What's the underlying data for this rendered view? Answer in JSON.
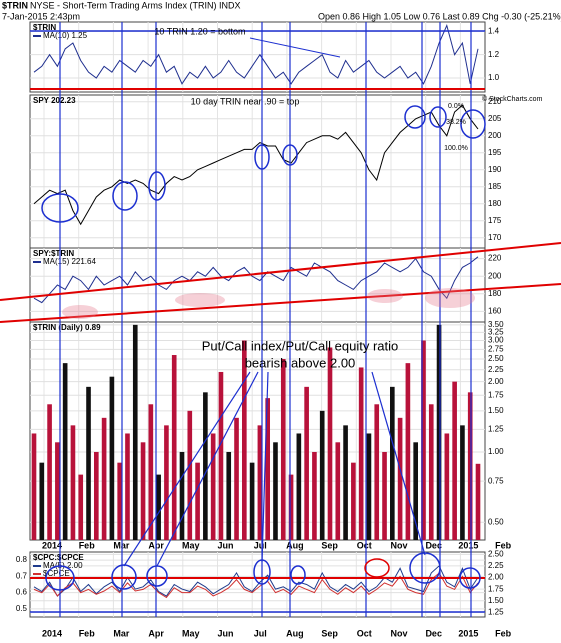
{
  "header": {
    "symbol": "$TRIN",
    "description": "NYSE - Short-Term Trading Arms Index (TRIN) INDX",
    "date": "7-Jan-2015 2:43pm",
    "quote": "Open 0.86 High 1.05 Low 0.76 Last 0.89 Chg -0.30 (-25.21%)",
    "credit": "© StockCharts.com"
  },
  "months": [
    "2014",
    "Feb",
    "Mar",
    "Apr",
    "May",
    "Jun",
    "Jul",
    "Aug",
    "Sep",
    "Oct",
    "Nov",
    "Dec",
    "2015",
    "Feb"
  ],
  "chart_data": [
    {
      "type": "line",
      "title": "$TRIN",
      "series": [
        {
          "name": "MA(10) 1.25",
          "color": "#1f2f8f",
          "values": [
            1.05,
            1.1,
            1.2,
            1.1,
            1.25,
            1.3,
            1.15,
            1.05,
            1.0,
            1.1,
            1.05,
            1.15,
            1.1,
            1.05,
            1.15,
            1.1,
            1.2,
            1.05,
            1.1,
            0.95,
            1.05,
            1.0,
            1.1,
            1.0,
            1.05,
            1.15,
            1.05,
            1.0,
            1.1,
            1.2,
            1.1,
            1.0,
            1.05,
            0.95,
            1.05,
            1.1,
            1.15,
            1.2,
            1.05,
            1.0,
            1.15,
            1.05,
            1.1,
            1.15,
            1.05,
            1.0,
            1.05,
            1.1,
            1.0,
            1.05,
            0.95,
            1.1,
            1.3,
            1.45,
            1.2,
            1.3,
            0.95,
            1.25
          ]
        }
      ],
      "ylim": [
        0.88,
        1.48
      ],
      "yticks": [
        {
          "value": 1,
          "label": "1.0"
        },
        1.2,
        1.4
      ],
      "annotations": [
        "10 TRIN 1.20 = bottom",
        "10 day TRIN near .90 = top"
      ]
    },
    {
      "type": "line",
      "title": "SPY 202.23",
      "series": [
        {
          "color": "#000000",
          "values": [
            180,
            182,
            184,
            183,
            184,
            178,
            174,
            178,
            182,
            184,
            185,
            187,
            186,
            187,
            186,
            184,
            183,
            186,
            188,
            187,
            188,
            190,
            191,
            192,
            193,
            194,
            195,
            196,
            196,
            198,
            197,
            197,
            193,
            192,
            195,
            198,
            199,
            200,
            200,
            199,
            201,
            198,
            195,
            190,
            187,
            195,
            198,
            201,
            203,
            205,
            206,
            207,
            203,
            200,
            207,
            209,
            205,
            202
          ]
        }
      ],
      "ylim": [
        167,
        212
      ],
      "yticks": [
        170,
        175,
        180,
        185,
        190,
        195,
        200,
        205,
        210
      ],
      "annotations": [
        "0.0%",
        "38.2%",
        "100.0%"
      ]
    },
    {
      "type": "line",
      "title": "SPY:$TRIN",
      "series": [
        {
          "name": "MA(15) 221.64",
          "color": "#1f2f8f",
          "values": [
            175,
            170,
            180,
            190,
            185,
            200,
            195,
            185,
            200,
            190,
            195,
            200,
            190,
            205,
            195,
            200,
            190,
            185,
            195,
            200,
            195,
            205,
            200,
            210,
            200,
            195,
            205,
            210,
            200,
            195,
            205,
            200,
            195,
            210,
            205,
            200,
            215,
            210,
            205,
            195,
            190,
            185,
            195,
            200,
            205,
            215,
            210,
            205,
            210,
            220,
            205,
            200,
            185,
            175,
            195,
            210,
            215,
            222
          ]
        }
      ],
      "ylim": [
        148,
        232
      ],
      "yticks": [
        160,
        180,
        200,
        220
      ]
    },
    {
      "type": "bar",
      "title": "$TRIN (Daily) 0.89",
      "log": true,
      "color": "#b8123a",
      "values": [
        1.2,
        0.9,
        1.6,
        1.1,
        2.4,
        1.3,
        0.8,
        1.9,
        1.0,
        1.4,
        2.1,
        0.9,
        1.2,
        3.5,
        1.1,
        1.6,
        0.8,
        1.3,
        2.6,
        1.0,
        1.5,
        0.9,
        1.8,
        1.2,
        2.2,
        1.0,
        1.4,
        3.0,
        0.9,
        1.3,
        1.7,
        1.1,
        2.5,
        0.8,
        1.2,
        1.9,
        1.0,
        1.5,
        2.8,
        1.1,
        1.3,
        0.9,
        2.3,
        1.2,
        1.6,
        1.0,
        1.9,
        1.4,
        2.4,
        1.1,
        3.0,
        1.6,
        3.5,
        1.2,
        2.0,
        1.3,
        1.8,
        0.89
      ],
      "ylim": [
        0.42,
        3.6
      ],
      "yticks": [
        {
          "value": 0.5,
          "label": "0.50"
        },
        0.75,
        {
          "value": 1,
          "label": "1.00"
        },
        1.25,
        {
          "value": 1.5,
          "label": "1.50"
        },
        1.75,
        {
          "value": 2,
          "label": "2.00"
        },
        2.25,
        {
          "value": 2.5,
          "label": "2.50"
        },
        2.75,
        {
          "value": 3,
          "label": "3.00"
        },
        3.25,
        {
          "value": 3.5,
          "label": "3.50"
        }
      ],
      "annotations": [
        "Put/Call index/Put/Call equity ratio",
        "bearish above 2.00"
      ]
    },
    {
      "type": "line",
      "title": "$CPC:$CPCE",
      "series": [
        {
          "name": "MA(5) 2.00",
          "color": "#1f3b8c",
          "axis": "y2",
          "values": [
            1.8,
            1.7,
            1.9,
            1.6,
            1.75,
            2.0,
            1.7,
            1.85,
            1.65,
            1.8,
            1.9,
            1.7,
            2.0,
            1.75,
            1.8,
            1.95,
            1.7,
            1.6,
            1.85,
            1.75,
            1.7,
            1.9,
            1.8,
            1.65,
            1.75,
            1.85,
            2.1,
            1.8,
            1.7,
            1.9,
            2.05,
            1.75,
            1.8,
            1.7,
            1.9,
            1.85,
            1.75,
            2.1,
            1.8,
            1.7,
            1.85,
            1.75,
            1.9,
            1.7,
            1.8,
            2.0,
            1.9,
            2.2,
            1.8,
            1.75,
            1.7,
            2.1,
            2.25,
            1.9,
            1.8,
            2.2,
            1.75,
            2.0
          ]
        },
        {
          "name": "$CPCE",
          "color": "#d03030",
          "values": [
            0.62,
            0.6,
            0.65,
            0.58,
            0.63,
            0.66,
            0.6,
            0.62,
            0.59,
            0.61,
            0.64,
            0.6,
            0.66,
            0.61,
            0.62,
            0.65,
            0.6,
            0.57,
            0.63,
            0.6,
            0.6,
            0.64,
            0.62,
            0.58,
            0.6,
            0.63,
            0.68,
            0.62,
            0.6,
            0.64,
            0.67,
            0.6,
            0.62,
            0.59,
            0.64,
            0.62,
            0.6,
            0.68,
            0.62,
            0.59,
            0.63,
            0.6,
            0.64,
            0.59,
            0.62,
            0.66,
            0.64,
            0.7,
            0.62,
            0.6,
            0.59,
            0.68,
            0.72,
            0.64,
            0.62,
            0.7,
            0.6,
            0.66
          ]
        }
      ],
      "ylim": [
        0.45,
        0.85
      ],
      "yticks": [
        0.5,
        0.6,
        0.7,
        0.8
      ],
      "y2lim": [
        1.15,
        2.55
      ],
      "y2ticks": [
        1.25,
        {
          "value": 1.5,
          "label": "1.50"
        },
        1.75,
        {
          "value": 2,
          "label": "2.00"
        },
        2.25,
        {
          "value": 2.5,
          "label": "2.50"
        }
      ]
    }
  ]
}
